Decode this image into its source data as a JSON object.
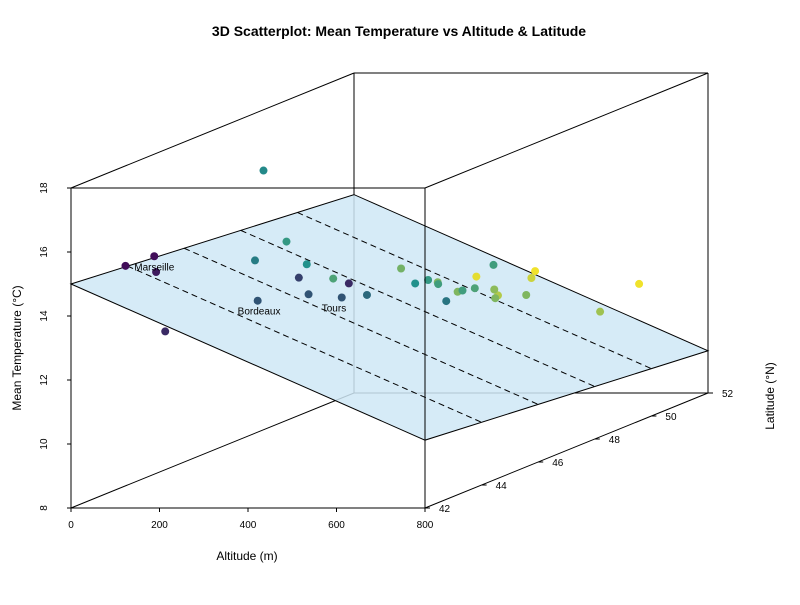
{
  "chart_data": {
    "type": "scatter",
    "title": "3D Scatterplot: Mean Temperature vs Altitude & Latitude",
    "xlabel": "Altitude (m)",
    "ylabel": "Latitude (°N)",
    "zlabel": "Mean Temperature (°C)",
    "xlim": [
      0,
      800
    ],
    "ylim": [
      42,
      52
    ],
    "zlim": [
      8,
      18
    ],
    "x_ticks": [
      "0",
      "200",
      "400",
      "600",
      "800"
    ],
    "y_ticks": [
      "42",
      "44",
      "46",
      "48",
      "50",
      "52"
    ],
    "z_ticks": [
      "8",
      "10",
      "12",
      "14",
      "16",
      "18"
    ],
    "grid": false,
    "color_scale": {
      "low": "#440154",
      "mid": "#21918c",
      "high": "#fde725",
      "by": "latitude"
    },
    "plane_color": "#cfe8f6",
    "regression_plane": {
      "intercept": 15.0,
      "slope_altitude": -0.0061,
      "slope_latitude": -0.08
    },
    "points": [
      {
        "x": 40,
        "y": 43.3,
        "z": 15.1
      },
      {
        "x": 90,
        "y": 43.6,
        "z": 14.8
      },
      {
        "x": 105,
        "y": 43.3,
        "z": 15.4,
        "label": "Marseille"
      },
      {
        "x": 85,
        "y": 44.0,
        "z": 12.8
      },
      {
        "x": 160,
        "y": 46.3,
        "z": 17.0
      },
      {
        "x": 160,
        "y": 46.0,
        "z": 14.3
      },
      {
        "x": 180,
        "y": 46.8,
        "z": 14.6
      },
      {
        "x": 245,
        "y": 46.5,
        "z": 14.0
      },
      {
        "x": 230,
        "y": 45.0,
        "z": 13.4,
        "label": "Bordeaux"
      },
      {
        "x": 260,
        "y": 47.2,
        "z": 13.3
      },
      {
        "x": 355,
        "y": 44.5,
        "z": 14.3
      },
      {
        "x": 345,
        "y": 45.0,
        "z": 13.6
      },
      {
        "x": 375,
        "y": 47.8,
        "z": 13.4
      },
      {
        "x": 420,
        "y": 45.0,
        "z": 13.5,
        "label": "Tours"
      },
      {
        "x": 445,
        "y": 45.5,
        "z": 13.4
      },
      {
        "x": 430,
        "y": 49.6,
        "z": 12.5
      },
      {
        "x": 445,
        "y": 48.0,
        "z": 12.9
      },
      {
        "x": 500,
        "y": 44.0,
        "z": 14.3
      },
      {
        "x": 490,
        "y": 46.5,
        "z": 13.4
      },
      {
        "x": 500,
        "y": 46.8,
        "z": 13.4
      },
      {
        "x": 510,
        "y": 47.0,
        "z": 13.2
      },
      {
        "x": 490,
        "y": 48.0,
        "z": 12.6
      },
      {
        "x": 530,
        "y": 48.8,
        "z": 12.2
      },
      {
        "x": 550,
        "y": 49.8,
        "z": 12.6
      },
      {
        "x": 560,
        "y": 48.2,
        "z": 12.6
      },
      {
        "x": 565,
        "y": 47.0,
        "z": 13.0
      },
      {
        "x": 580,
        "y": 47.2,
        "z": 13.0
      },
      {
        "x": 580,
        "y": 49.2,
        "z": 12.6
      },
      {
        "x": 575,
        "y": 48.0,
        "z": 12.4
      },
      {
        "x": 605,
        "y": 45.8,
        "z": 13.1
      },
      {
        "x": 635,
        "y": 47.0,
        "z": 13.8
      },
      {
        "x": 645,
        "y": 48.0,
        "z": 12.5
      },
      {
        "x": 785,
        "y": 49.8,
        "z": 12.2
      },
      {
        "x": 780,
        "y": 48.5,
        "z": 11.8
      }
    ]
  }
}
